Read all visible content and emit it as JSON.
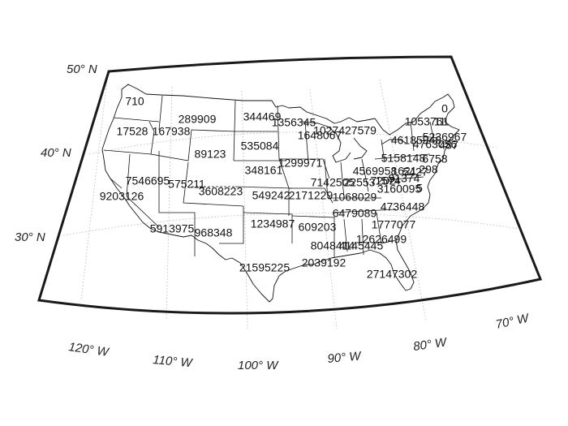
{
  "map": {
    "latitude_labels": [
      "50° N",
      "40° N",
      "30° N"
    ],
    "longitude_labels": [
      "120° W",
      "110° W",
      "100° W",
      "90° W",
      "80° W",
      "70° W"
    ],
    "state_values": [
      {
        "state": "WA",
        "value": "710"
      },
      {
        "state": "OR",
        "value": "17528"
      },
      {
        "state": "ID",
        "value": "167938"
      },
      {
        "state": "MT",
        "value": "289909"
      },
      {
        "state": "ND",
        "value": "344469"
      },
      {
        "state": "MN",
        "value": "1356345"
      },
      {
        "state": "WY",
        "value": "89123"
      },
      {
        "state": "SD",
        "value": "535084"
      },
      {
        "state": "WI",
        "value": "1648067"
      },
      {
        "state": "MI",
        "value": "1027427579"
      },
      {
        "state": "NE",
        "value": "348161"
      },
      {
        "state": "IA",
        "value": "1299971"
      },
      {
        "state": "NV",
        "value": "7546695"
      },
      {
        "state": "UT",
        "value": "575211"
      },
      {
        "state": "CO",
        "value": "3608223"
      },
      {
        "state": "CA",
        "value": "9203126"
      },
      {
        "state": "KS",
        "value": "549242"
      },
      {
        "state": "MO",
        "value": "2171229"
      },
      {
        "state": "IL",
        "value": "7142505"
      },
      {
        "state": "IN",
        "value": "22553"
      },
      {
        "state": "OH",
        "value": "4569958"
      },
      {
        "state": "KY",
        "value": "1068029"
      },
      {
        "state": "TN",
        "value": "6479089"
      },
      {
        "state": "AZ",
        "value": "5913975"
      },
      {
        "state": "NM",
        "value": "968348"
      },
      {
        "state": "OK",
        "value": "1234987"
      },
      {
        "state": "AR",
        "value": "609203"
      },
      {
        "state": "MS",
        "value": "8048414"
      },
      {
        "state": "AL",
        "value": "4145445"
      },
      {
        "state": "GA",
        "value": "12626499"
      },
      {
        "state": "SC",
        "value": "1777077"
      },
      {
        "state": "NC",
        "value": "4736448"
      },
      {
        "state": "TX",
        "value": "21595225"
      },
      {
        "state": "LA",
        "value": "2039192"
      },
      {
        "state": "FL",
        "value": "27147302"
      },
      {
        "state": "VA",
        "value": "3160095"
      },
      {
        "state": "WV",
        "value": "1574"
      },
      {
        "state": "PA",
        "value": "5158148"
      },
      {
        "state": "NY",
        "value": "46185948"
      },
      {
        "state": "VT",
        "value": "1053761"
      },
      {
        "state": "ME",
        "value": "0"
      },
      {
        "state": "NH",
        "value": "11"
      },
      {
        "state": "MA",
        "value": "5236967"
      },
      {
        "state": "CT",
        "value": "4763056"
      },
      {
        "state": "RI",
        "value": "487"
      },
      {
        "state": "NJ",
        "value": "6758"
      },
      {
        "state": "DE",
        "value": "298"
      },
      {
        "state": "MD",
        "value": "5427"
      },
      {
        "state": "DC",
        "value": "1621"
      },
      {
        "state": "MD2",
        "value": "91374"
      },
      {
        "state": "VA2",
        "value": "7202"
      },
      {
        "state": "NC2",
        "value": "5"
      }
    ]
  }
}
